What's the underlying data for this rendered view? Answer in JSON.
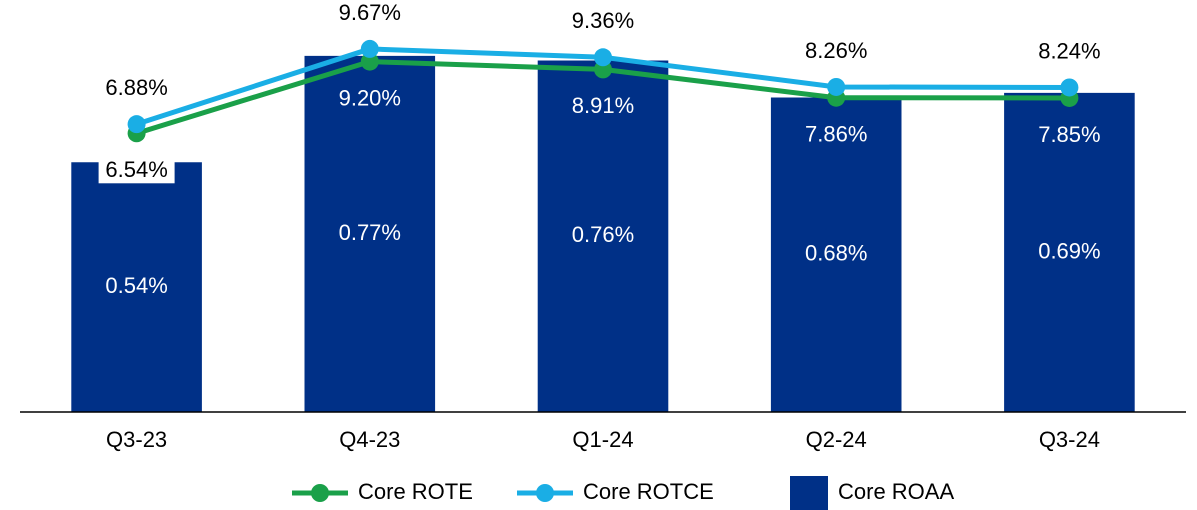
{
  "chart_data": {
    "type": "bar",
    "categories": [
      "Q3-23",
      "Q4-23",
      "Q1-24",
      "Q2-24",
      "Q3-24"
    ],
    "series": [
      {
        "name": "Core ROTE",
        "type": "line",
        "axis": "y2",
        "color": "#1aa049",
        "values": [
          6.54,
          9.2,
          8.91,
          7.86,
          7.85
        ],
        "value_labels": [
          "6.54%",
          "9.20%",
          "8.91%",
          "7.86%",
          "7.85%"
        ]
      },
      {
        "name": "Core ROTCE",
        "type": "line",
        "axis": "y2",
        "color": "#1aaee5",
        "values": [
          6.88,
          9.67,
          9.36,
          8.26,
          8.24
        ],
        "value_labels": [
          "6.88%",
          "9.67%",
          "9.36%",
          "8.26%",
          "8.24%"
        ]
      },
      {
        "name": "Core ROAA",
        "type": "bar",
        "color": "#003087",
        "values": [
          0.54,
          0.77,
          0.76,
          0.68,
          0.69
        ],
        "value_labels": [
          "0.54%",
          "0.77%",
          "0.76%",
          "0.68%",
          "0.69%"
        ]
      }
    ],
    "ylim": [
      0,
      0.88
    ],
    "y2lim": [
      -3.8,
      11.3
    ],
    "legend": "bottom"
  }
}
